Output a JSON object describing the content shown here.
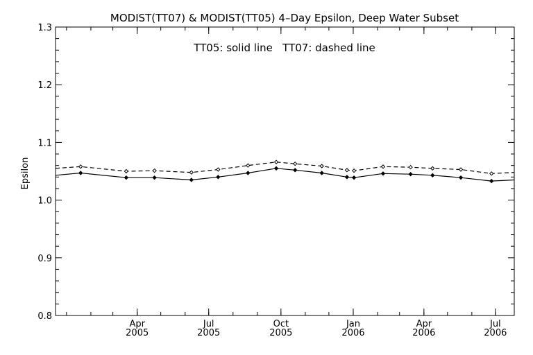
{
  "chart_data": {
    "type": "line",
    "title": "MODIST(TT07) & MODIST(TT05) 4–Day Epsilon, Deep Water Subset",
    "annotation": "TT05: solid line   TT07: dashed line",
    "xlabel": "",
    "ylabel": "Epsilon",
    "xlim": [
      "2004-12-18",
      "2006-07-25"
    ],
    "ylim": [
      0.8,
      1.3
    ],
    "y_ticks": [
      "0.8",
      "0.9",
      "1.0",
      "1.1",
      "1.2",
      "1.3"
    ],
    "x_ticks": [
      {
        "date": "2005-04-01",
        "month": "Apr",
        "year": "2005"
      },
      {
        "date": "2005-07-01",
        "month": "Jul",
        "year": "2005"
      },
      {
        "date": "2005-10-01",
        "month": "Oct",
        "year": "2005"
      },
      {
        "date": "2006-01-01",
        "month": "Jan",
        "year": "2006"
      },
      {
        "date": "2006-04-01",
        "month": "Apr",
        "year": "2006"
      },
      {
        "date": "2006-07-01",
        "month": "Jul",
        "year": "2006"
      }
    ],
    "grid": false,
    "legend": "none",
    "series": [
      {
        "style": "solid",
        "color": "#000000",
        "points": [
          {
            "x": "2004-12-18",
            "y": 1.043
          },
          {
            "x": "2005-01-19",
            "y": 1.047
          },
          {
            "x": "2005-03-18",
            "y": 1.039
          },
          {
            "x": "2005-04-23",
            "y": 1.039
          },
          {
            "x": "2005-06-09",
            "y": 1.035
          },
          {
            "x": "2005-07-13",
            "y": 1.04
          },
          {
            "x": "2005-08-20",
            "y": 1.047
          },
          {
            "x": "2005-09-25",
            "y": 1.055
          },
          {
            "x": "2005-10-19",
            "y": 1.052
          },
          {
            "x": "2005-11-22",
            "y": 1.047
          },
          {
            "x": "2005-12-24",
            "y": 1.04
          },
          {
            "x": "2006-01-02",
            "y": 1.039
          },
          {
            "x": "2006-02-08",
            "y": 1.046
          },
          {
            "x": "2006-03-15",
            "y": 1.045
          },
          {
            "x": "2006-04-12",
            "y": 1.043
          },
          {
            "x": "2006-05-18",
            "y": 1.039
          },
          {
            "x": "2006-06-26",
            "y": 1.033
          },
          {
            "x": "2006-07-25",
            "y": 1.035
          }
        ]
      },
      {
        "style": "dashed",
        "color": "#000000",
        "points": [
          {
            "x": "2004-12-18",
            "y": 1.055
          },
          {
            "x": "2005-01-19",
            "y": 1.058
          },
          {
            "x": "2005-03-18",
            "y": 1.05
          },
          {
            "x": "2005-04-23",
            "y": 1.051
          },
          {
            "x": "2005-06-09",
            "y": 1.048
          },
          {
            "x": "2005-07-13",
            "y": 1.053
          },
          {
            "x": "2005-08-20",
            "y": 1.06
          },
          {
            "x": "2005-09-25",
            "y": 1.066
          },
          {
            "x": "2005-10-19",
            "y": 1.063
          },
          {
            "x": "2005-11-22",
            "y": 1.059
          },
          {
            "x": "2005-12-24",
            "y": 1.052
          },
          {
            "x": "2006-01-02",
            "y": 1.051
          },
          {
            "x": "2006-02-08",
            "y": 1.058
          },
          {
            "x": "2006-03-15",
            "y": 1.057
          },
          {
            "x": "2006-04-12",
            "y": 1.055
          },
          {
            "x": "2006-05-18",
            "y": 1.053
          },
          {
            "x": "2006-06-26",
            "y": 1.046
          },
          {
            "x": "2006-07-25",
            "y": 1.048
          }
        ]
      }
    ]
  }
}
